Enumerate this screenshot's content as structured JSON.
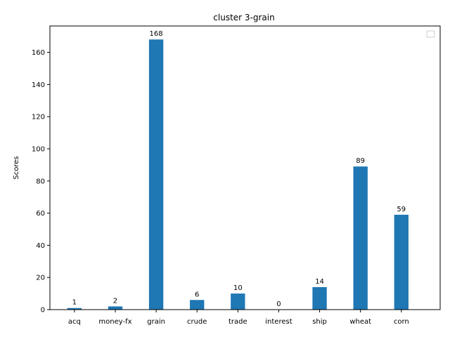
{
  "chart_data": {
    "type": "bar",
    "title": "cluster 3-grain",
    "xlabel": "",
    "ylabel": "Scores",
    "categories": [
      "acq",
      "money-fx",
      "grain",
      "crude",
      "trade",
      "interest",
      "ship",
      "wheat",
      "corn"
    ],
    "values": [
      1,
      2,
      168,
      6,
      10,
      0,
      14,
      89,
      59
    ],
    "ylim": [
      0,
      176.4
    ],
    "yticks": [
      0,
      20,
      40,
      60,
      80,
      100,
      120,
      140,
      160
    ],
    "bar_color": "#1f77b4",
    "grid": false,
    "legend": "top-right (empty)"
  }
}
